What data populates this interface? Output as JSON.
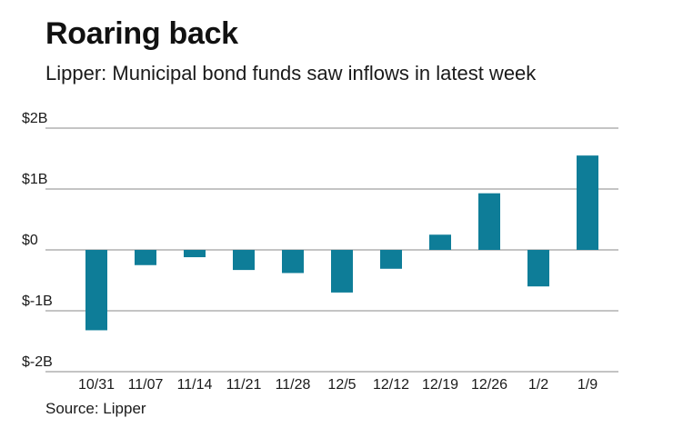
{
  "title": "Roaring back",
  "subtitle": "Lipper: Municipal bond funds saw inflows in latest week",
  "source": "Source: Lipper",
  "chart_data": {
    "type": "bar",
    "title": "Roaring back",
    "subtitle": "Lipper: Municipal bond funds saw inflows in latest week",
    "xlabel": "",
    "ylabel": "",
    "categories": [
      "10/31",
      "11/07",
      "11/14",
      "11/21",
      "11/28",
      "12/5",
      "12/12",
      "12/19",
      "12/26",
      "1/2",
      "1/9"
    ],
    "values": [
      -1.32,
      -0.25,
      -0.12,
      -0.33,
      -0.38,
      -0.7,
      -0.31,
      0.25,
      0.93,
      -0.6,
      1.55
    ],
    "unit": "billions USD",
    "ylim": [
      -2,
      2
    ],
    "yticks": [
      2,
      1,
      0,
      -1,
      -2
    ],
    "ytick_labels": [
      "$2B",
      "$1B",
      "$0",
      "$-1B",
      "$-2B"
    ],
    "bar_color": "#0e7d98",
    "grid_color": "#8a8a8a",
    "grid": true,
    "legend": "none"
  }
}
